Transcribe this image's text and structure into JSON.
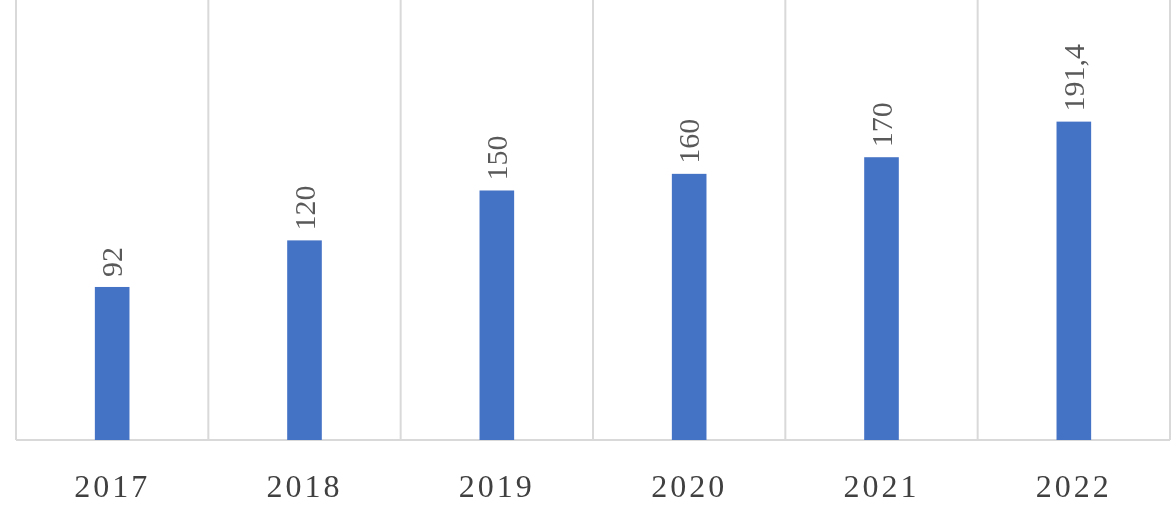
{
  "chart_data": {
    "type": "bar",
    "categories": [
      "2017",
      "2018",
      "2019",
      "2020",
      "2021",
      "2022"
    ],
    "values": [
      92,
      120,
      150,
      160,
      170,
      191.4
    ],
    "color": "#4472c4",
    "value_labels": [
      "92",
      "120",
      "150",
      "160",
      "170",
      "191,4"
    ],
    "grid": "x"
  }
}
